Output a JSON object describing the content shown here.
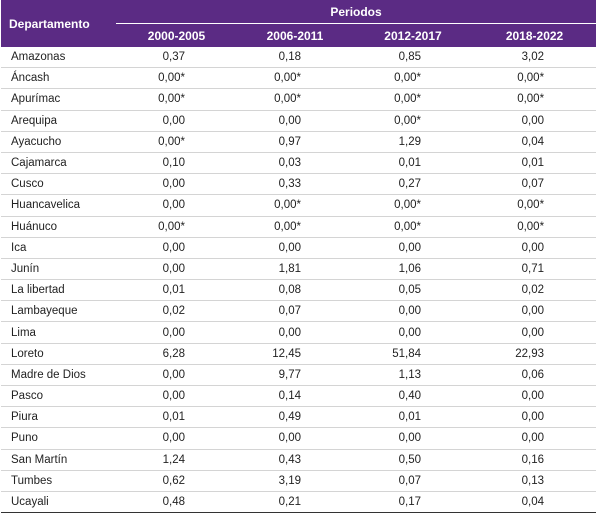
{
  "table": {
    "header": {
      "row_label": "Departamento",
      "group": "Periodos",
      "columns": [
        "2000-2005",
        "2006-2011",
        "2012-2017",
        "2018-2022"
      ]
    },
    "rows": [
      [
        "Amazonas",
        "0,37",
        "0,18",
        "0,85",
        "3,02"
      ],
      [
        "Áncash",
        "0,00*",
        "0,00*",
        "0,00*",
        "0,00*"
      ],
      [
        "Apurímac",
        "0,00*",
        "0,00*",
        "0,00*",
        "0,00*"
      ],
      [
        "Arequipa",
        "0,00",
        "0,00",
        "0,00*",
        "0,00"
      ],
      [
        "Ayacucho",
        "0,00*",
        "0,97",
        "1,29",
        "0,04"
      ],
      [
        "Cajamarca",
        "0,10",
        "0,03",
        "0,01",
        "0,01"
      ],
      [
        "Cusco",
        "0,00",
        "0,33",
        "0,27",
        "0,07"
      ],
      [
        "Huancavelica",
        "0,00",
        "0,00*",
        "0,00*",
        "0,00*"
      ],
      [
        "Huánuco",
        "0,00*",
        "0,00*",
        "0,00*",
        "0,00*"
      ],
      [
        "Ica",
        "0,00",
        "0,00",
        "0,00",
        "0,00"
      ],
      [
        "Junín",
        "0,00",
        "1,81",
        "1,06",
        "0,71"
      ],
      [
        "La libertad",
        "0,01",
        "0,08",
        "0,05",
        "0,02"
      ],
      [
        "Lambayeque",
        "0,02",
        "0,07",
        "0,00",
        "0,00"
      ],
      [
        "Lima",
        "0,00",
        "0,00",
        "0,00",
        "0,00"
      ],
      [
        "Loreto",
        "6,28",
        "12,45",
        "51,84",
        "22,93"
      ],
      [
        "Madre de Dios",
        "0,00",
        "9,77",
        "1,13",
        "0,06"
      ],
      [
        "Pasco",
        "0,00",
        "0,14",
        "0,40",
        "0,00"
      ],
      [
        "Piura",
        "0,01",
        "0,49",
        "0,01",
        "0,00"
      ],
      [
        "Puno",
        "0,00",
        "0,00",
        "0,00",
        "0,00"
      ],
      [
        "San Martín",
        "1,24",
        "0,43",
        "0,50",
        "0,16"
      ],
      [
        "Tumbes",
        "0,62",
        "3,19",
        "0,07",
        "0,13"
      ],
      [
        "Ucayali",
        "0,48",
        "0,21",
        "0,17",
        "0,04"
      ]
    ]
  }
}
